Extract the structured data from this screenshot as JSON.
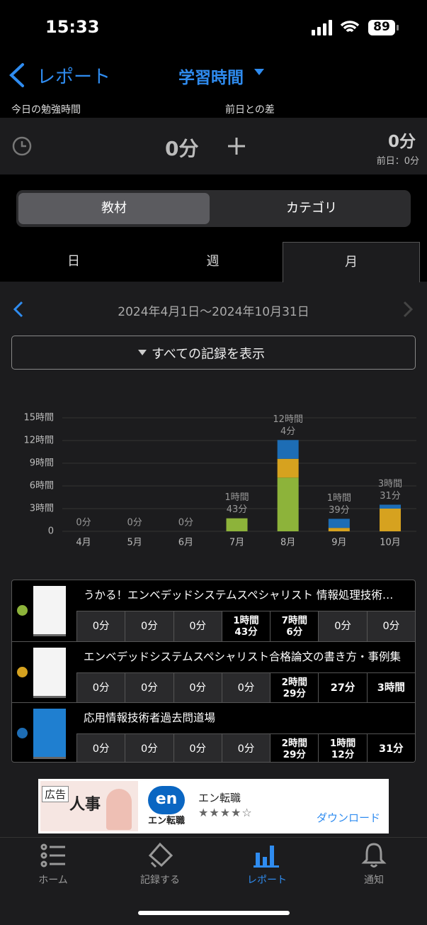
{
  "status_bar": {
    "time": "15:33",
    "battery": "89"
  },
  "nav": {
    "back": "レポート",
    "title": "学習時間"
  },
  "summary": {
    "today_label": "今日の勉強時間",
    "diff_label": "前日との差",
    "today_value": "0分",
    "diff_value": "0分",
    "previous": "前日：0分"
  },
  "segments": [
    "教材",
    "カテゴリ"
  ],
  "period_tabs": [
    "日",
    "週",
    "月"
  ],
  "date_range": "2024年4月1日～2024年10月31日",
  "show_all_button": "すべての記録を表示",
  "chart_data": {
    "type": "bar",
    "stacked": true,
    "categories": [
      "4月",
      "5月",
      "6月",
      "7月",
      "8月",
      "9月",
      "10月"
    ],
    "series": [
      {
        "name": "うかる！エンベデッドシステムスペシャリスト 情報処理技術…",
        "color": "#8db33a",
        "values": [
          0,
          0,
          0,
          1.717,
          7.1,
          0,
          0
        ]
      },
      {
        "name": "エンベデッドシステムスペシャリスト合格論文の書き方・事例集",
        "color": "#d6a21f",
        "values": [
          0,
          0,
          0,
          0,
          2.483,
          0.45,
          3
        ]
      },
      {
        "name": "応用情報技術者過去問道場",
        "color": "#1d6db5",
        "values": [
          0,
          0,
          0,
          0,
          2.483,
          1.2,
          0.517
        ]
      }
    ],
    "total_labels": [
      [
        "0分"
      ],
      [
        "0分"
      ],
      [
        "0分"
      ],
      [
        "1時間",
        "43分"
      ],
      [
        "12時間",
        "4分"
      ],
      [
        "1時間",
        "39分"
      ],
      [
        "3時間",
        "31分"
      ]
    ],
    "ylim": [
      0,
      15
    ],
    "yticks": [
      0,
      {
        "value": 3,
        "label": "3時間"
      },
      {
        "value": 6,
        "label": "6時間"
      },
      {
        "value": 9,
        "label": "9時間"
      },
      {
        "value": 12,
        "label": "12時間"
      },
      {
        "value": 15,
        "label": "15時間"
      }
    ],
    "grid": true
  },
  "table": {
    "rows": [
      {
        "cells": [
          [
            "0分"
          ],
          [
            "0分"
          ],
          [
            "0分"
          ],
          [
            "1時間",
            "43分"
          ],
          [
            "7時間",
            "6分"
          ],
          [
            "0分"
          ],
          [
            "0分"
          ]
        ]
      },
      {
        "cells": [
          [
            "0分"
          ],
          [
            "0分"
          ],
          [
            "0分"
          ],
          [
            "0分"
          ],
          [
            "2時間",
            "29分"
          ],
          [
            "27分"
          ],
          [
            "3時間"
          ]
        ]
      },
      {
        "cells": [
          [
            "0分"
          ],
          [
            "0分"
          ],
          [
            "0分"
          ],
          [
            "0分"
          ],
          [
            "2時間",
            "29分"
          ],
          [
            "1時間",
            "12分"
          ],
          [
            "31分"
          ]
        ]
      }
    ]
  },
  "ad": {
    "badge": "広告",
    "headline": "人事",
    "logo": "en",
    "logo_caption": "エン転職",
    "brand": "エン転職",
    "cta": "ダウンロード"
  },
  "tab_bar": [
    "ホーム",
    "記録する",
    "レポート",
    "通知"
  ]
}
